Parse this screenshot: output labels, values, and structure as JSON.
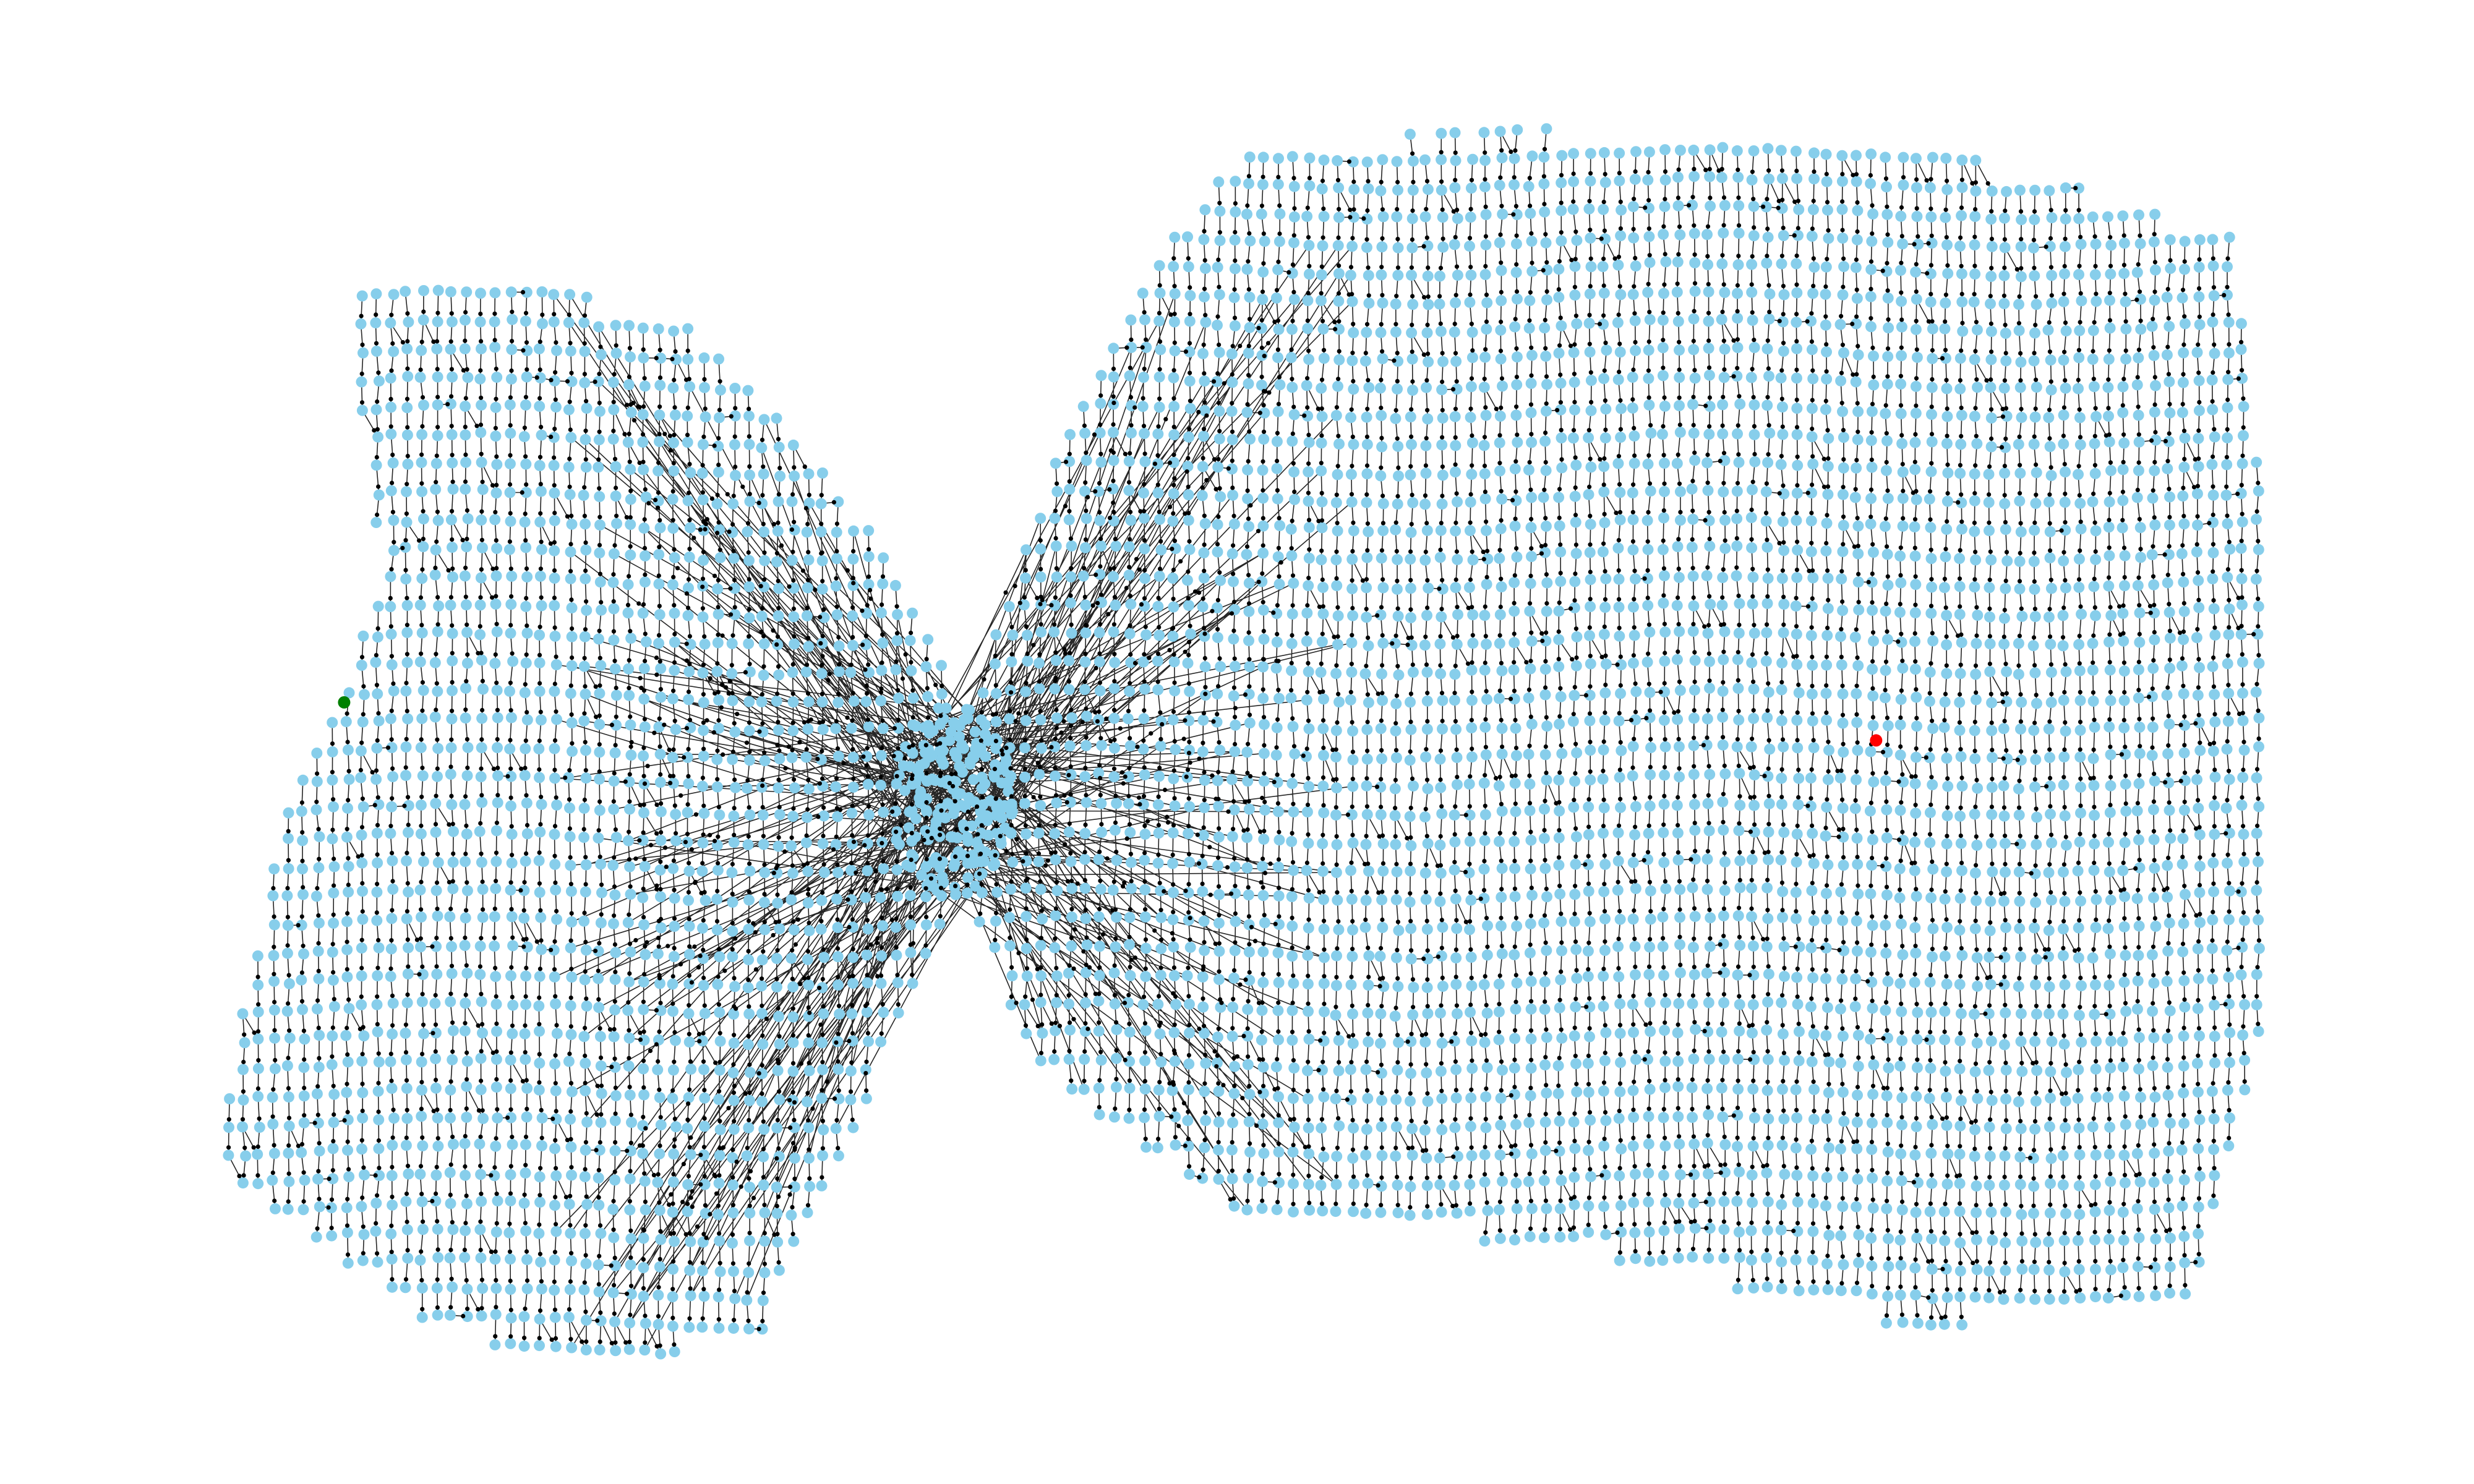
{
  "diagram": {
    "node_color": "#87ceeb",
    "edge_color": "#000000",
    "source_node_color": "#008000",
    "target_node_color": "#ff0000"
  }
}
